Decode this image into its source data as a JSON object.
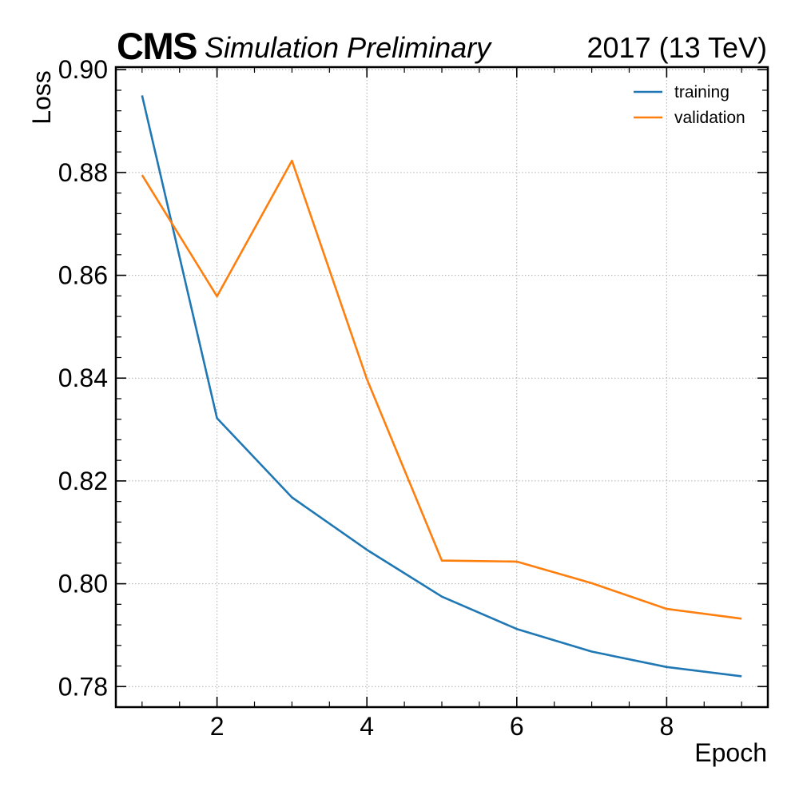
{
  "header": {
    "brand": "CMS",
    "extra": "Simulation Preliminary",
    "lumi": "2017 (13 TeV)"
  },
  "chart_data": {
    "type": "line",
    "xlabel": "Epoch",
    "ylabel": "Loss",
    "xlim": [
      0.65,
      9.35
    ],
    "ylim": [
      0.776,
      0.9005
    ],
    "xticks": [
      2,
      4,
      6,
      8
    ],
    "xtick_labels": [
      "2",
      "4",
      "6",
      "8"
    ],
    "yticks": [
      0.78,
      0.8,
      0.82,
      0.84,
      0.86,
      0.88,
      0.9
    ],
    "ytick_labels": [
      "0.78",
      "0.80",
      "0.82",
      "0.84",
      "0.86",
      "0.88",
      "0.90"
    ],
    "grid": true,
    "legend_position": "top-right",
    "x": [
      1,
      2,
      3,
      4,
      5,
      6,
      7,
      8,
      9
    ],
    "series": [
      {
        "name": "training",
        "color": "#1f77b4",
        "values": [
          0.895,
          0.8322,
          0.8168,
          0.8066,
          0.7975,
          0.7912,
          0.7868,
          0.7838,
          0.782
        ]
      },
      {
        "name": "validation",
        "color": "#ff7f0e",
        "values": [
          0.8795,
          0.8559,
          0.8823,
          0.8398,
          0.8045,
          0.8043,
          0.8001,
          0.7951,
          0.7932
        ]
      }
    ]
  }
}
